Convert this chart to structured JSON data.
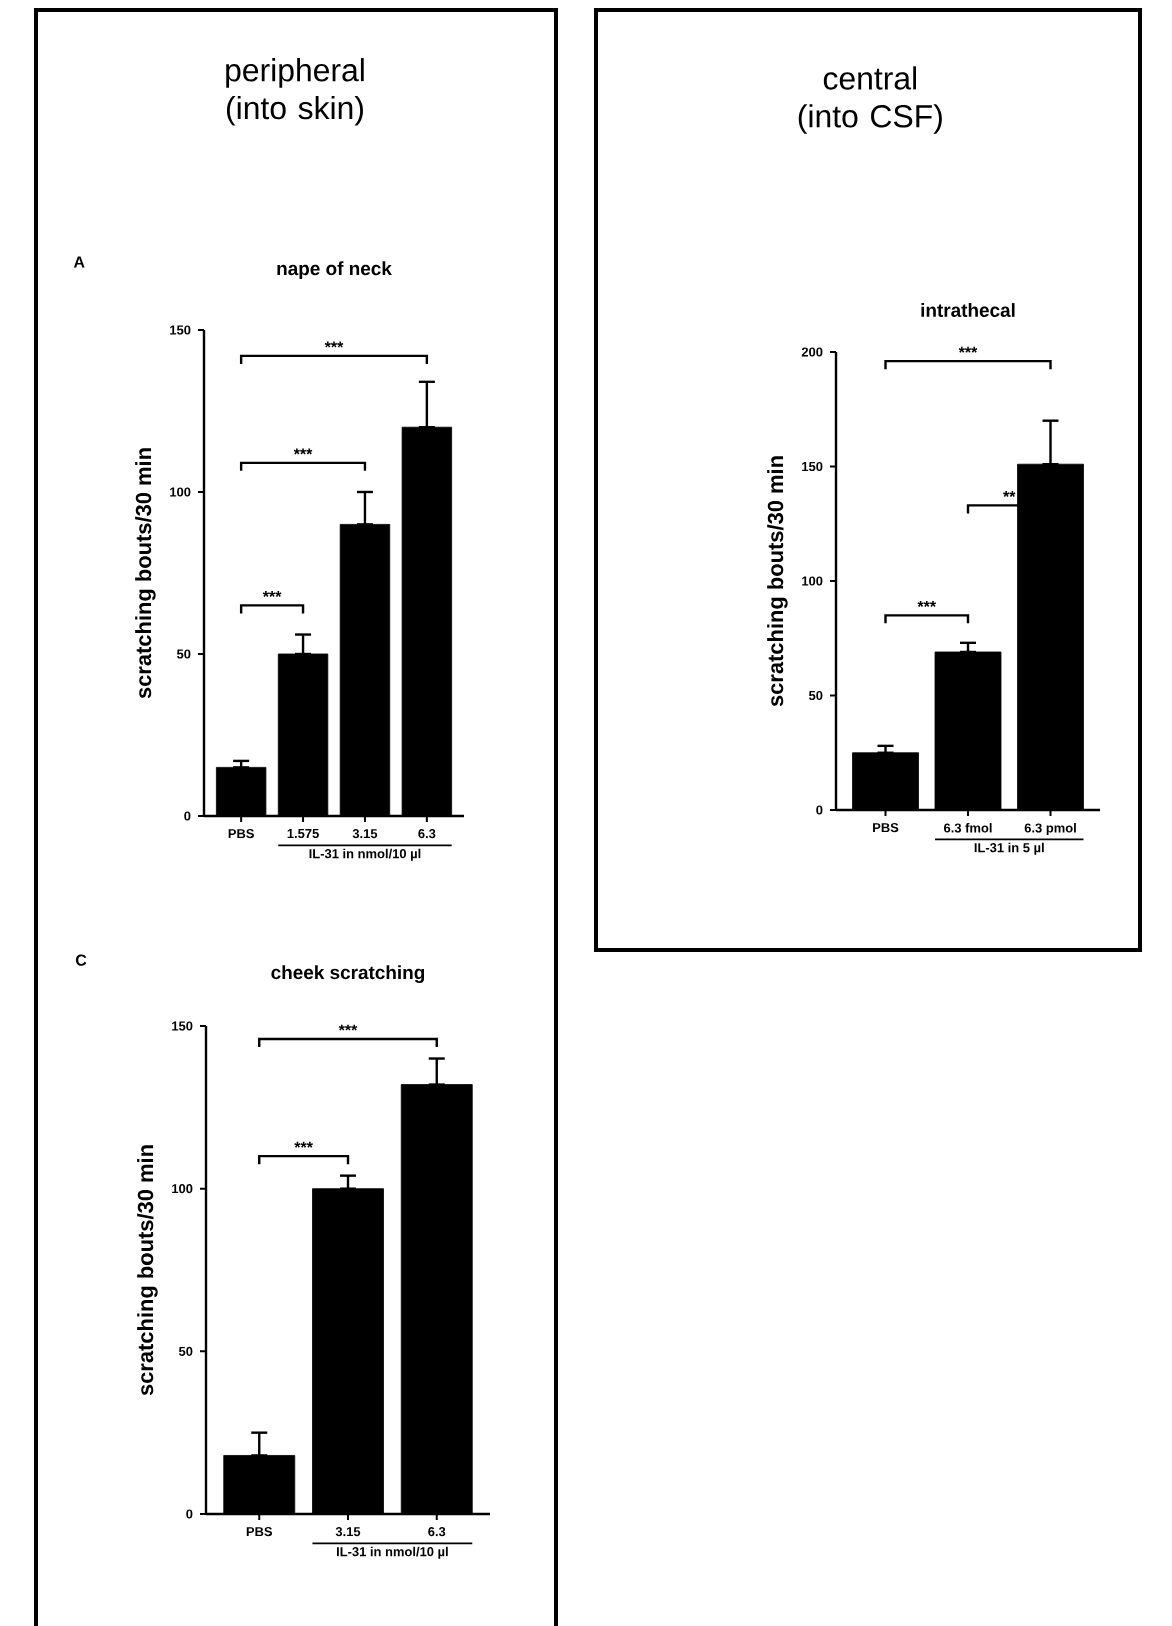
{
  "chart_data": [
    {
      "type": "bar",
      "title": "nape of neck",
      "ylabel": "scratching bouts/30 min",
      "xlabel": "IL-31 in nmol/10 µl",
      "categories": [
        "PBS",
        "1.575",
        "3.15",
        "6.3"
      ],
      "values": [
        15,
        50,
        90,
        120
      ],
      "errors": [
        [
          15,
          17
        ],
        [
          50,
          56
        ],
        [
          90,
          100
        ],
        [
          120,
          134
        ]
      ],
      "color": "#000000",
      "ylim": [
        0,
        150
      ],
      "yticks": [
        0,
        50,
        100,
        150
      ],
      "annotations": [
        "peripheral (into skin)",
        "A",
        "***",
        "***",
        "***"
      ]
    },
    {
      "type": "bar",
      "title": "intrathecal",
      "ylabel": "scratching bouts/30 min",
      "xlabel": "IL-31 in 5 µl",
      "categories": [
        "PBS",
        "6.3 fmol",
        "6.3 pmol"
      ],
      "values": [
        25,
        69,
        151
      ],
      "errors": [
        [
          25,
          28
        ],
        [
          69,
          73
        ],
        [
          151,
          170
        ]
      ],
      "color": "#000000",
      "ylim": [
        0,
        200
      ],
      "yticks": [
        0,
        50,
        100,
        150,
        200
      ],
      "annotations": [
        "central (into CSF)",
        "***",
        "**",
        "***"
      ]
    },
    {
      "type": "bar",
      "title": "cheek scratching",
      "ylabel": "scratching bouts/30 min",
      "xlabel": "IL-31 in nmol/10 µl",
      "categories": [
        "PBS",
        "3.15",
        "6.3"
      ],
      "values": [
        18,
        100,
        132
      ],
      "errors": [
        [
          18,
          25
        ],
        [
          100,
          104
        ],
        [
          132,
          140
        ]
      ],
      "color": "#000000",
      "ylim": [
        0,
        150
      ],
      "yticks": [
        0,
        50,
        100,
        150
      ],
      "annotations": [
        "C",
        "***",
        "***"
      ]
    }
  ]
}
